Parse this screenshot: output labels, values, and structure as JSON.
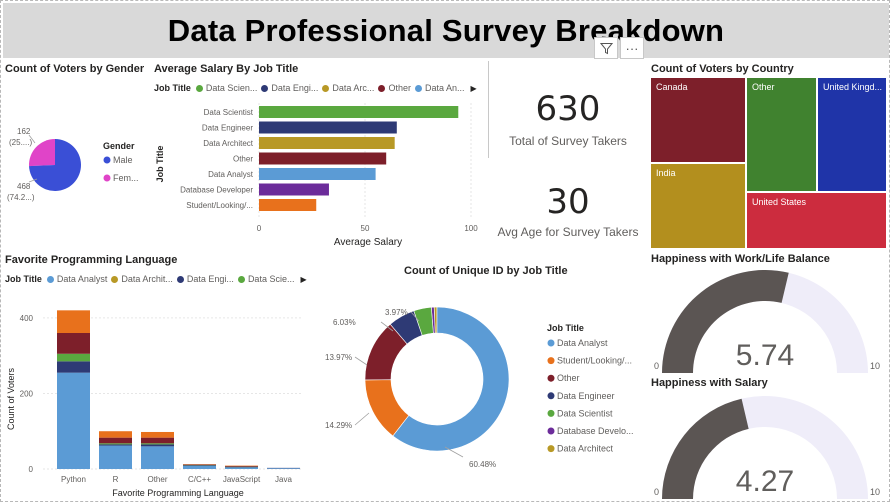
{
  "title": "Data Professional Survey Breakdown",
  "tools": {
    "filter_icon": "filter-icon",
    "more_icon": "more-options-icon",
    "more_label": "···"
  },
  "gender": {
    "title": "Count of Voters by Gender",
    "legend_title": "Gender",
    "legend": [
      {
        "label": "Male",
        "color": "#3a4fd6"
      },
      {
        "label": "Fem...",
        "color": "#e044c8"
      }
    ],
    "slices": [
      {
        "label": "Male",
        "value": 468,
        "color": "#3a4fd6"
      },
      {
        "label": "Female",
        "value": 162,
        "color": "#e044c8"
      }
    ],
    "labels": {
      "female_count": "162",
      "female_pct": "(25....)",
      "male_count": "468",
      "male_pct": "(74.2...)"
    }
  },
  "salary": {
    "title": "Average Salary By Job Title",
    "legend_title": "Job Title",
    "legend": [
      {
        "label": "Data Scien...",
        "color": "#5aa83f"
      },
      {
        "label": "Data Engi...",
        "color": "#2e3a75"
      },
      {
        "label": "Data Arc...",
        "color": "#b89926"
      },
      {
        "label": "Other",
        "color": "#7d1f2a"
      },
      {
        "label": "Data An...",
        "color": "#5b9bd5"
      }
    ],
    "xlabel": "Average Salary",
    "ylabel": "Job Title",
    "xlim": [
      0,
      100
    ],
    "xticks": [
      "0",
      "50",
      "100"
    ],
    "categories": [
      "Data Scientist",
      "Data Engineer",
      "Data Architect",
      "Other",
      "Data Analyst",
      "Database Developer",
      "Student/Looking/..."
    ],
    "values": [
      94,
      65,
      64,
      60,
      55,
      33,
      27
    ],
    "colors": [
      "#5aa83f",
      "#2e3a75",
      "#b89926",
      "#7d1f2a",
      "#5b9bd5",
      "#6c2c9a",
      "#e8711c"
    ]
  },
  "cards": {
    "total_value": "630",
    "total_label": "Total of Survey Takers",
    "age_value": "30",
    "age_label": "Avg Age for Survey Takers"
  },
  "country": {
    "title": "Count of Voters by Country",
    "cells": [
      {
        "label": "Canada",
        "color": "#7d1f2a"
      },
      {
        "label": "Other",
        "color": "#40822f"
      },
      {
        "label": "United Kingd...",
        "color": "#1f34a8"
      },
      {
        "label": "India",
        "color": "#b38f1e"
      },
      {
        "label": "United States",
        "color": "#cc2c3e"
      }
    ]
  },
  "language": {
    "title": "Favorite Programming Language",
    "legend_title": "Job Title",
    "legend": [
      {
        "label": "Data Analyst",
        "color": "#5b9bd5"
      },
      {
        "label": "Data Archit...",
        "color": "#b89926"
      },
      {
        "label": "Data Engi...",
        "color": "#2e3a75"
      },
      {
        "label": "Data Scie...",
        "color": "#5aa83f"
      }
    ],
    "xlabel": "Favorite Programming Language",
    "ylabel": "Count of Voters",
    "ylim": [
      0,
      450
    ],
    "yticks": [
      "0",
      "200",
      "400"
    ],
    "categories": [
      "Python",
      "R",
      "Other",
      "C/C++",
      "JavaScript",
      "Java"
    ],
    "series": [
      {
        "name": "Data Analyst",
        "color": "#5b9bd5",
        "values": [
          255,
          62,
          60,
          8,
          4,
          2
        ]
      },
      {
        "name": "Data Engineer",
        "color": "#2e3a75",
        "values": [
          30,
          3,
          5,
          2,
          1,
          1
        ]
      },
      {
        "name": "Data Scientist",
        "color": "#5aa83f",
        "values": [
          20,
          3,
          3,
          1,
          1,
          0
        ]
      },
      {
        "name": "Other",
        "color": "#7d1f2a",
        "values": [
          55,
          15,
          15,
          1,
          2,
          0
        ]
      },
      {
        "name": "Student/Looking/...",
        "color": "#e8711c",
        "values": [
          60,
          17,
          15,
          1,
          1,
          0
        ]
      }
    ]
  },
  "unique_id": {
    "title": "Count of Unique ID by Job Title",
    "legend_title": "Job Title",
    "legend": [
      {
        "label": "Data Analyst",
        "color": "#5b9bd5"
      },
      {
        "label": "Student/Looking/...",
        "color": "#e8711c"
      },
      {
        "label": "Other",
        "color": "#7d1f2a"
      },
      {
        "label": "Data Engineer",
        "color": "#2e3a75"
      },
      {
        "label": "Data Scientist",
        "color": "#5aa83f"
      },
      {
        "label": "Database Develo...",
        "color": "#6c2c9a"
      },
      {
        "label": "Data Architect",
        "color": "#b89926"
      }
    ],
    "slices": [
      {
        "label": "Data Analyst",
        "value": 60.48,
        "color": "#5b9bd5"
      },
      {
        "label": "Student/Looking/...",
        "value": 14.29,
        "color": "#e8711c"
      },
      {
        "label": "Other",
        "value": 13.97,
        "color": "#7d1f2a"
      },
      {
        "label": "Data Engineer",
        "value": 6.03,
        "color": "#2e3a75"
      },
      {
        "label": "Data Scientist",
        "value": 3.97,
        "color": "#5aa83f"
      },
      {
        "label": "Database Developer",
        "value": 0.63,
        "color": "#6c2c9a"
      },
      {
        "label": "Data Architect",
        "value": 0.63,
        "color": "#b89926"
      }
    ],
    "pct_labels": {
      "analyst": "60.48%",
      "student": "14.29%",
      "other": "13.97%",
      "engineer": "6.03%",
      "scientist": "3.97%"
    }
  },
  "happiness_work": {
    "title": "Happiness with Work/Life Balance",
    "value": 5.74,
    "value_label": "5.74",
    "min": "0",
    "max": "10",
    "min_value": 0,
    "max_value": 10
  },
  "happiness_salary": {
    "title": "Happiness with Salary",
    "value": 4.27,
    "value_label": "4.27",
    "min": "0",
    "max": "10",
    "min_value": 0,
    "max_value": 10
  }
}
